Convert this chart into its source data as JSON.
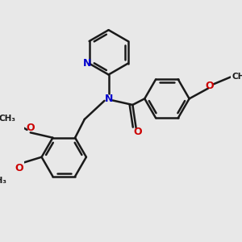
{
  "background_color": "#e8e8e8",
  "bond_color": "#1a1a1a",
  "nitrogen_color": "#0000cc",
  "oxygen_color": "#cc0000",
  "bond_width": 1.8,
  "figsize": [
    3.0,
    3.0
  ],
  "dpi": 100,
  "xlim": [
    -1.5,
    4.5
  ],
  "ylim": [
    -3.5,
    3.0
  ]
}
